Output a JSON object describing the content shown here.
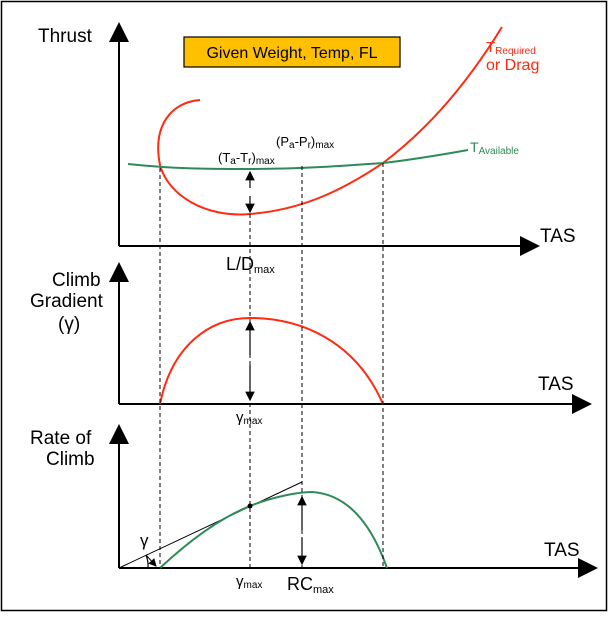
{
  "colors": {
    "required": "#ff2a10",
    "available": "#2e8b57",
    "banner": "#ffc000",
    "axis": "#000000"
  },
  "banner": {
    "text": "Given Weight, Temp, FL"
  },
  "panel1": {
    "y_axis_label": "Thrust",
    "x_axis_label": "TAS",
    "required_main": "T",
    "required_sub": "Required",
    "required_line2": "or Drag",
    "available_main": "T",
    "available_sub": "Available",
    "excess_thrust": {
      "open": "(T",
      "a": "a",
      "dash": "-T",
      "r": "r",
      "close": ")",
      "sub": "max"
    },
    "excess_power": {
      "open": "(P",
      "a": "a",
      "dash": "-P",
      "r": "r",
      "close": ")",
      "sub": "max"
    },
    "ld_label": {
      "main": "L/D",
      "sub": "max"
    }
  },
  "panel2": {
    "y_axis_line1": "Climb",
    "y_axis_line2": "Gradient",
    "y_axis_line3": "(γ)",
    "x_axis_label": "TAS",
    "peak_label": {
      "main": "γ",
      "sub": "max"
    }
  },
  "panel3": {
    "y_axis_line1": "Rate of",
    "y_axis_line2": "Climb",
    "x_axis_label": "TAS",
    "gamma_label": "γ",
    "gamma_max_label": {
      "main": "γ",
      "sub": "max"
    },
    "rc_max_label": {
      "main": "RC",
      "sub": "max"
    }
  }
}
